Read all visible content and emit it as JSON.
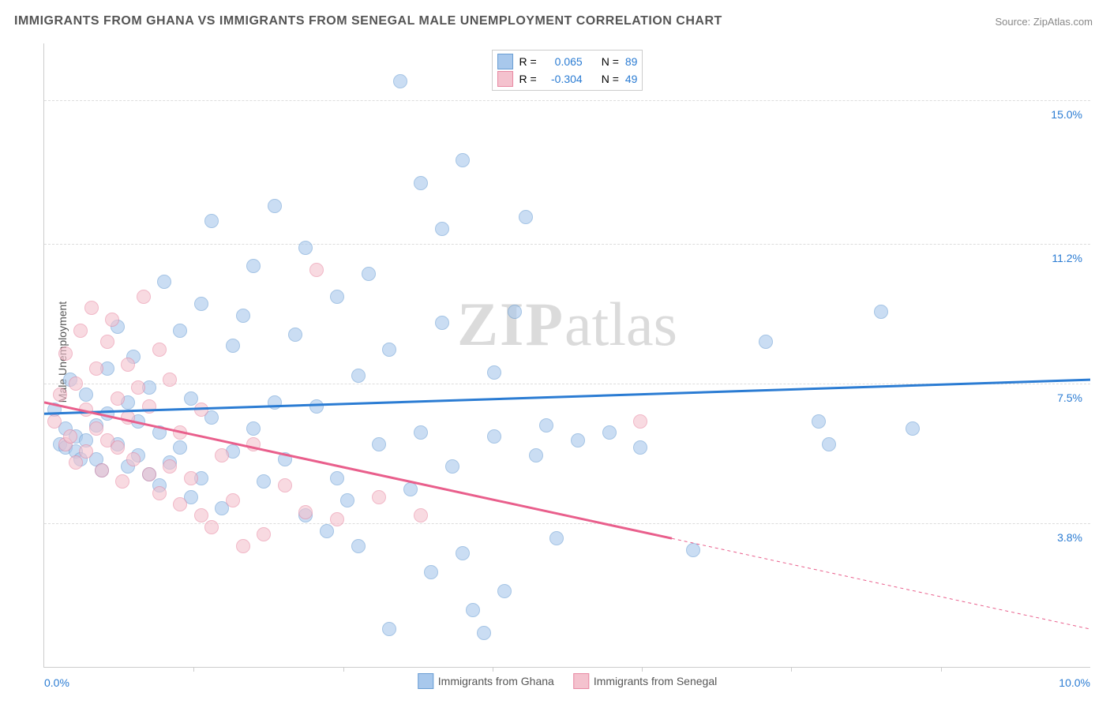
{
  "title": "IMMIGRANTS FROM GHANA VS IMMIGRANTS FROM SENEGAL MALE UNEMPLOYMENT CORRELATION CHART",
  "source": "Source: ZipAtlas.com",
  "y_axis_label": "Male Unemployment",
  "watermark": {
    "prefix": "ZIP",
    "suffix": "atlas"
  },
  "chart": {
    "type": "scatter",
    "xlim": [
      0.0,
      10.0
    ],
    "ylim": [
      0.0,
      16.5
    ],
    "x_ticks": [
      0.0,
      10.0
    ],
    "x_tick_labels": [
      "0.0%",
      "10.0%"
    ],
    "x_minor_ticks": [
      1.43,
      2.86,
      4.29,
      5.71,
      7.14,
      8.57
    ],
    "y_ticks": [
      3.8,
      7.5,
      11.2,
      15.0
    ],
    "y_tick_labels": [
      "3.8%",
      "7.5%",
      "11.2%",
      "15.0%"
    ],
    "background_color": "#ffffff",
    "grid_color": "#dddddd",
    "marker_radius": 8,
    "series": [
      {
        "name": "Immigrants from Ghana",
        "color_fill": "#a8c8ec",
        "color_stroke": "#6a9ed4",
        "R": "0.065",
        "N": "89",
        "trend": {
          "y_start": 6.7,
          "y_end": 7.6,
          "solid_end_x": 10.0,
          "color": "#2b7cd3",
          "width": 3
        },
        "points": [
          [
            0.1,
            6.8
          ],
          [
            0.15,
            5.9
          ],
          [
            0.2,
            6.3
          ],
          [
            0.2,
            5.8
          ],
          [
            0.25,
            7.6
          ],
          [
            0.3,
            6.1
          ],
          [
            0.3,
            5.7
          ],
          [
            0.35,
            5.5
          ],
          [
            0.4,
            7.2
          ],
          [
            0.4,
            6.0
          ],
          [
            0.5,
            6.4
          ],
          [
            0.5,
            5.5
          ],
          [
            0.55,
            5.2
          ],
          [
            0.6,
            6.7
          ],
          [
            0.6,
            7.9
          ],
          [
            0.7,
            5.9
          ],
          [
            0.7,
            9.0
          ],
          [
            0.8,
            5.3
          ],
          [
            0.8,
            7.0
          ],
          [
            0.85,
            8.2
          ],
          [
            0.9,
            5.6
          ],
          [
            0.9,
            6.5
          ],
          [
            1.0,
            5.1
          ],
          [
            1.0,
            7.4
          ],
          [
            1.1,
            4.8
          ],
          [
            1.1,
            6.2
          ],
          [
            1.15,
            10.2
          ],
          [
            1.2,
            5.4
          ],
          [
            1.3,
            8.9
          ],
          [
            1.3,
            5.8
          ],
          [
            1.4,
            7.1
          ],
          [
            1.4,
            4.5
          ],
          [
            1.5,
            9.6
          ],
          [
            1.5,
            5.0
          ],
          [
            1.6,
            6.6
          ],
          [
            1.6,
            11.8
          ],
          [
            1.7,
            4.2
          ],
          [
            1.8,
            8.5
          ],
          [
            1.8,
            5.7
          ],
          [
            1.9,
            9.3
          ],
          [
            2.0,
            6.3
          ],
          [
            2.0,
            10.6
          ],
          [
            2.1,
            4.9
          ],
          [
            2.2,
            12.2
          ],
          [
            2.2,
            7.0
          ],
          [
            2.3,
            5.5
          ],
          [
            2.4,
            8.8
          ],
          [
            2.5,
            11.1
          ],
          [
            2.5,
            4.0
          ],
          [
            2.6,
            6.9
          ],
          [
            2.7,
            3.6
          ],
          [
            2.8,
            9.8
          ],
          [
            2.8,
            5.0
          ],
          [
            2.9,
            4.4
          ],
          [
            3.0,
            7.7
          ],
          [
            3.0,
            3.2
          ],
          [
            3.1,
            10.4
          ],
          [
            3.2,
            5.9
          ],
          [
            3.3,
            1.0
          ],
          [
            3.3,
            8.4
          ],
          [
            3.4,
            15.5
          ],
          [
            3.5,
            4.7
          ],
          [
            3.6,
            12.8
          ],
          [
            3.6,
            6.2
          ],
          [
            3.7,
            2.5
          ],
          [
            3.8,
            11.6
          ],
          [
            3.8,
            9.1
          ],
          [
            3.9,
            5.3
          ],
          [
            4.0,
            13.4
          ],
          [
            4.0,
            3.0
          ],
          [
            4.1,
            1.5
          ],
          [
            4.2,
            0.9
          ],
          [
            4.3,
            7.8
          ],
          [
            4.3,
            6.1
          ],
          [
            4.4,
            2.0
          ],
          [
            4.5,
            9.4
          ],
          [
            4.6,
            11.9
          ],
          [
            4.7,
            5.6
          ],
          [
            4.8,
            6.4
          ],
          [
            4.9,
            3.4
          ],
          [
            5.1,
            6.0
          ],
          [
            5.4,
            6.2
          ],
          [
            5.7,
            5.8
          ],
          [
            6.2,
            3.1
          ],
          [
            6.9,
            8.6
          ],
          [
            7.4,
            6.5
          ],
          [
            7.5,
            5.9
          ],
          [
            8.0,
            9.4
          ],
          [
            8.3,
            6.3
          ]
        ]
      },
      {
        "name": "Immigrants from Senegal",
        "color_fill": "#f4c2ce",
        "color_stroke": "#e889a3",
        "R": "-0.304",
        "N": "49",
        "trend": {
          "y_start": 7.0,
          "y_end_solid": 3.4,
          "solid_end_x": 6.0,
          "y_end_dashed": 1.0,
          "color": "#e95f8c",
          "width": 3
        },
        "points": [
          [
            0.1,
            6.5
          ],
          [
            0.15,
            7.2
          ],
          [
            0.2,
            5.9
          ],
          [
            0.2,
            8.3
          ],
          [
            0.25,
            6.1
          ],
          [
            0.3,
            7.5
          ],
          [
            0.3,
            5.4
          ],
          [
            0.35,
            8.9
          ],
          [
            0.4,
            6.8
          ],
          [
            0.4,
            5.7
          ],
          [
            0.45,
            9.5
          ],
          [
            0.5,
            6.3
          ],
          [
            0.5,
            7.9
          ],
          [
            0.55,
            5.2
          ],
          [
            0.6,
            8.6
          ],
          [
            0.6,
            6.0
          ],
          [
            0.65,
            9.2
          ],
          [
            0.7,
            5.8
          ],
          [
            0.7,
            7.1
          ],
          [
            0.75,
            4.9
          ],
          [
            0.8,
            6.6
          ],
          [
            0.8,
            8.0
          ],
          [
            0.85,
            5.5
          ],
          [
            0.9,
            7.4
          ],
          [
            0.95,
            9.8
          ],
          [
            1.0,
            5.1
          ],
          [
            1.0,
            6.9
          ],
          [
            1.1,
            4.6
          ],
          [
            1.1,
            8.4
          ],
          [
            1.2,
            5.3
          ],
          [
            1.2,
            7.6
          ],
          [
            1.3,
            4.3
          ],
          [
            1.3,
            6.2
          ],
          [
            1.4,
            5.0
          ],
          [
            1.5,
            4.0
          ],
          [
            1.5,
            6.8
          ],
          [
            1.6,
            3.7
          ],
          [
            1.7,
            5.6
          ],
          [
            1.8,
            4.4
          ],
          [
            1.9,
            3.2
          ],
          [
            2.0,
            5.9
          ],
          [
            2.1,
            3.5
          ],
          [
            2.3,
            4.8
          ],
          [
            2.5,
            4.1
          ],
          [
            2.6,
            10.5
          ],
          [
            2.8,
            3.9
          ],
          [
            3.2,
            4.5
          ],
          [
            3.6,
            4.0
          ],
          [
            5.7,
            6.5
          ]
        ]
      }
    ]
  },
  "legend_top_labels": {
    "R": "R =",
    "N": "N ="
  },
  "legend_bottom": [
    "Immigrants from Ghana",
    "Immigrants from Senegal"
  ],
  "colors": {
    "blue_text": "#2b7cd3",
    "pink_text": "#e95f8c",
    "axis_label": "#555555"
  }
}
